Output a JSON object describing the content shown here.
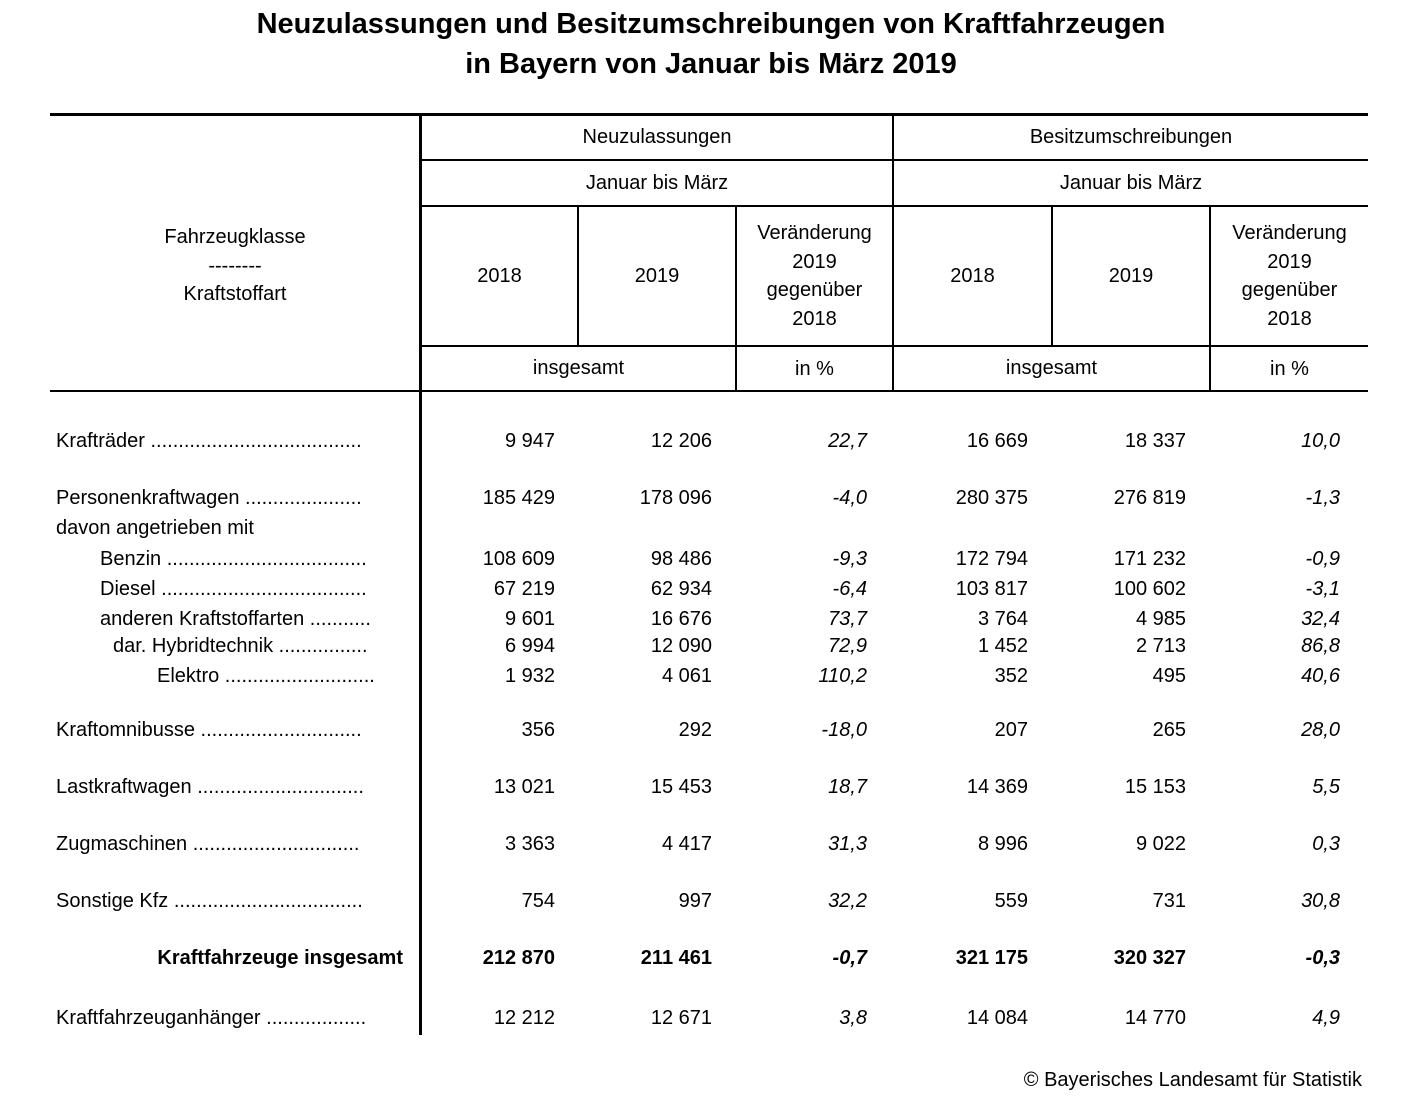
{
  "title": {
    "line1": "Neuzulassungen und Besitzumschreibungen von Kraftfahrzeugen",
    "line2": "in Bayern von Januar bis März 2019"
  },
  "header": {
    "row_label": [
      "Fahrzeugklasse",
      "--------",
      "Kraftstoffart"
    ],
    "group1": "Neuzulassungen",
    "group2": "Besitzumschreibungen",
    "period1": "Januar bis März",
    "period2": "Januar bis März",
    "year_a": "2018",
    "year_b": "2019",
    "change": [
      "Veränderung",
      "2019",
      "gegenüber",
      "2018"
    ],
    "unit_total1": "insgesamt",
    "unit_pct1": "in %",
    "unit_total2": "insgesamt",
    "unit_pct2": "in %"
  },
  "rows": [
    {
      "label": "Krafträder",
      "dots": " ......................................",
      "values": [
        "9 947",
        "12 206",
        "22,7",
        "16 669",
        "18 337",
        "10,0"
      ]
    },
    {
      "label": "Personenkraftwagen",
      "dots": " .....................",
      "values": [
        "185 429",
        "178 096",
        "-4,0",
        "280 375",
        "276 819",
        "-1,3"
      ]
    },
    {
      "label": "davon angetrieben mit",
      "dots": "",
      "values": [
        "",
        "",
        "",
        "",
        "",
        ""
      ]
    },
    {
      "label": "Benzin",
      "dots": " ....................................",
      "values": [
        "108 609",
        "98 486",
        "-9,3",
        "172 794",
        "171 232",
        "-0,9"
      ]
    },
    {
      "label": "Diesel",
      "dots": " .....................................",
      "values": [
        "67 219",
        "62 934",
        "-6,4",
        "103 817",
        "100 602",
        "-3,1"
      ]
    },
    {
      "label": "anderen Kraftstoffarten",
      "dots": " ...........",
      "values": [
        "9 601",
        "16 676",
        "73,7",
        "3 764",
        "4 985",
        "32,4"
      ]
    },
    {
      "label": "dar. Hybridtechnik",
      "dots": " ................",
      "values": [
        "6 994",
        "12 090",
        "72,9",
        "1 452",
        "2 713",
        "86,8"
      ]
    },
    {
      "label": "Elektro",
      "dots": " ...........................",
      "values": [
        "1 932",
        "4 061",
        "110,2",
        "352",
        "495",
        "40,6"
      ]
    },
    {
      "label": "Kraftomnibusse",
      "dots": " .............................",
      "values": [
        "356",
        "292",
        "-18,0",
        "207",
        "265",
        "28,0"
      ]
    },
    {
      "label": "Lastkraftwagen",
      "dots": " ..............................",
      "values": [
        "13 021",
        "15 453",
        "18,7",
        "14 369",
        "15 153",
        "5,5"
      ]
    },
    {
      "label": "Zugmaschinen",
      "dots": " ..............................",
      "values": [
        "3 363",
        "4 417",
        "31,3",
        "8 996",
        "9 022",
        "0,3"
      ]
    },
    {
      "label": "Sonstige Kfz",
      "dots": " ..................................",
      "values": [
        "754",
        "997",
        "32,2",
        "559",
        "731",
        "30,8"
      ]
    },
    {
      "label": "Kraftfahrzeuge insgesamt",
      "dots": "",
      "values": [
        "212 870",
        "211 461",
        "-0,7",
        "321 175",
        "320 327",
        "-0,3"
      ]
    },
    {
      "label": "Kraftfahrzeuganhänger",
      "dots": " ..................",
      "values": [
        "12 212",
        "12 671",
        "3,8",
        "14 084",
        "14 770",
        "4,9"
      ]
    }
  ],
  "copyright": "© Bayerisches Landesamt für Statistik"
}
